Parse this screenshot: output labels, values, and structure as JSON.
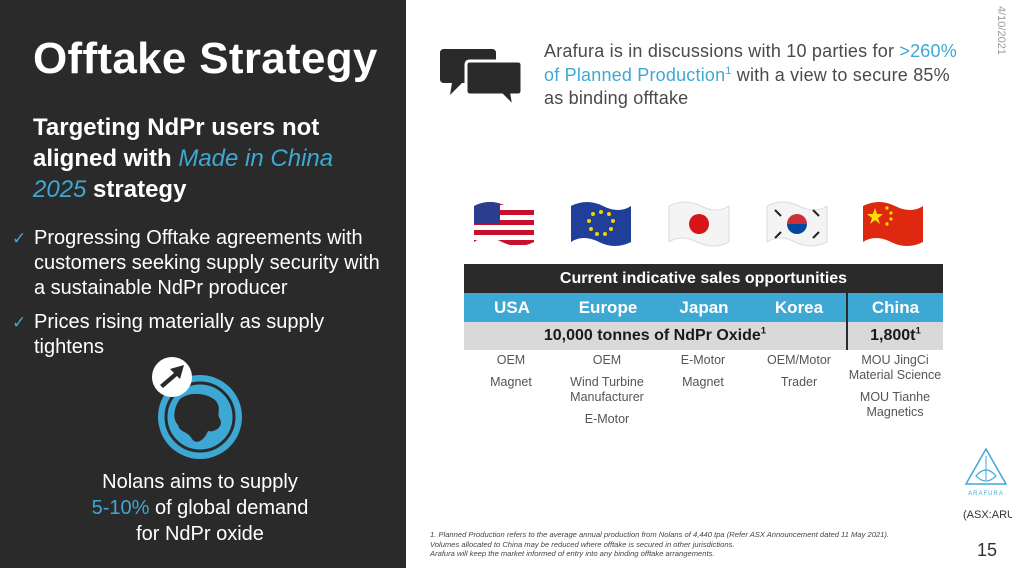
{
  "date": "4/10/2021",
  "title": "Offtake Strategy",
  "subtitle": {
    "line1": "Targeting NdPr users not aligned with ",
    "highlight": "Made in China 2025",
    "line2": " strategy"
  },
  "bullets": [
    "Progressing Offtake agreements with customers seeking supply security with a sustainable NdPr producer",
    "Prices rising materially as supply tightens"
  ],
  "nolans": {
    "line1": "Nolans aims to supply",
    "highlight": "5-10%",
    "line2": " of global demand",
    "line3": "for NdPr oxide"
  },
  "intro": {
    "part1": "Arafura is in discussions with 10 parties for ",
    "highlight": ">260% of Planned Production",
    "sup": "1",
    "part2": " with a view to secure 85% as binding offtake"
  },
  "table": {
    "header": "Current indicative sales opportunities",
    "countries": [
      "USA",
      "Europe",
      "Japan",
      "Korea",
      "China"
    ],
    "volume_main": "10,000 tonnes of NdPr Oxide",
    "volume_main_sup": "1",
    "volume_china": "1,800t",
    "volume_china_sup": "1"
  },
  "columns": [
    {
      "items": [
        "OEM",
        "Magnet"
      ]
    },
    {
      "items": [
        "OEM",
        "Wind Turbine Manufacturer",
        "E-Motor"
      ]
    },
    {
      "items": [
        "E-Motor",
        "Magnet"
      ]
    },
    {
      "items": [
        "OEM/Motor",
        "Trader"
      ]
    },
    {
      "items": [
        "MOU JingCi Material Science",
        "MOU Tianhe Magnetics"
      ]
    }
  ],
  "asx": "(ASX:ARU)",
  "logo_text": "ARAFURA",
  "footnote": {
    "line1": "1. Planned Production refers to the average annual production from Nolans of 4,440 tpa (Refer ASX Announcement dated 11 May 2021).",
    "line2": "Volumes allocated to China may be reduced where offtake is secured in other jurisdictions.",
    "line3": "Arafura will keep the market informed of entry into any binding offtake arrangements."
  },
  "page_number": "15",
  "colors": {
    "accent": "#3ea8d4",
    "panel": "#2b2a2b",
    "band": "#d9d9d9"
  }
}
